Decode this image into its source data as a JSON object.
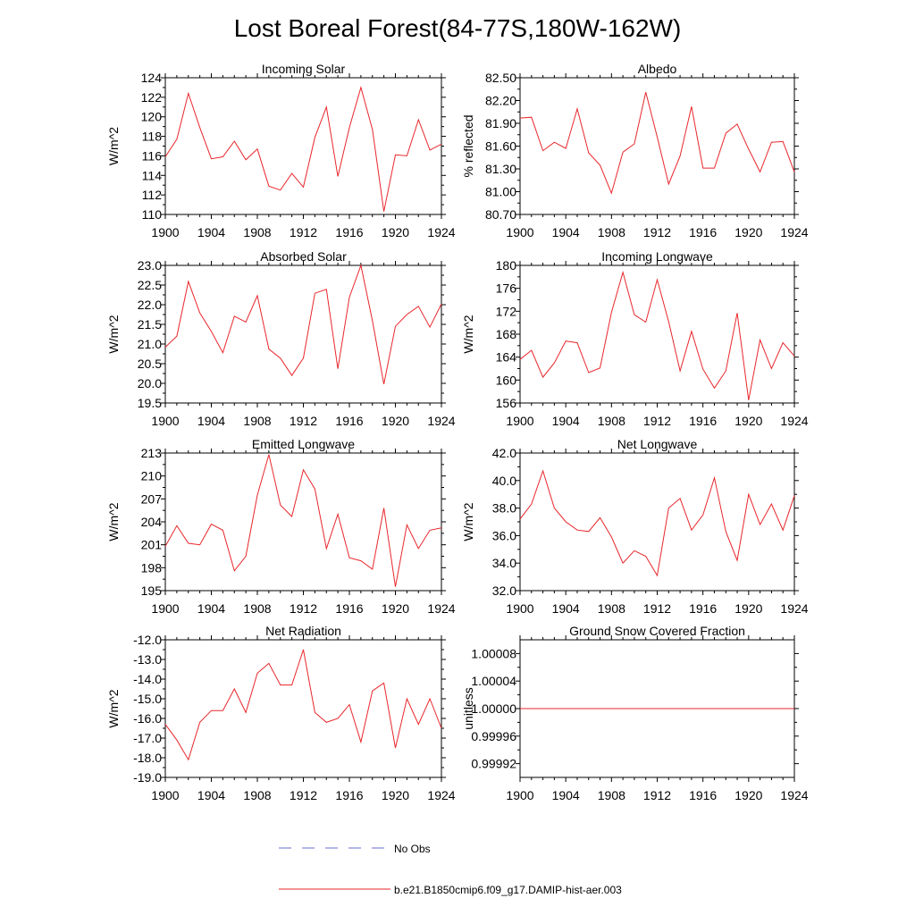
{
  "title": "Lost Boreal Forest(84-77S,180W-162W)",
  "legend": {
    "obs_label": "No Obs",
    "model_label": "b.e21.B1850cmip6.f09_g17.DAMIP-hist-aer.003",
    "obs_color": "#6b6bd6",
    "model_color": "#e8262b"
  },
  "chart_data": [
    {
      "type": "line",
      "title": "Incoming Solar",
      "ylabel": "W/m^2",
      "xlim": [
        1900,
        1924
      ],
      "ylim": [
        110,
        124
      ],
      "xticks": [
        1900,
        1904,
        1908,
        1912,
        1916,
        1920,
        1924
      ],
      "yticks": [
        110,
        112,
        114,
        116,
        118,
        120,
        122,
        124
      ],
      "ytick_labels": [
        "110",
        "112",
        "114",
        "116",
        "118",
        "120",
        "122",
        "124"
      ],
      "x": [
        1900,
        1901,
        1902,
        1903,
        1904,
        1905,
        1906,
        1907,
        1908,
        1909,
        1910,
        1911,
        1912,
        1913,
        1914,
        1915,
        1916,
        1917,
        1918,
        1919,
        1920,
        1921,
        1922,
        1923,
        1924
      ],
      "series": [
        {
          "values": [
            115.9,
            117.7,
            122.4,
            118.9,
            115.7,
            115.9,
            117.5,
            115.6,
            116.7,
            112.9,
            112.5,
            114.2,
            112.8,
            117.9,
            121.0,
            113.9,
            118.9,
            123.0,
            118.7,
            110.3,
            116.1,
            116.0,
            119.7,
            116.6,
            117.2
          ]
        }
      ]
    },
    {
      "type": "line",
      "title": "Albedo",
      "ylabel": "% reflected",
      "xlim": [
        1900,
        1924
      ],
      "ylim": [
        80.7,
        82.5
      ],
      "xticks": [
        1900,
        1904,
        1908,
        1912,
        1916,
        1920,
        1924
      ],
      "yticks": [
        80.7,
        81.0,
        81.3,
        81.6,
        81.9,
        82.2,
        82.5
      ],
      "ytick_labels": [
        "80.70",
        "81.00",
        "81.30",
        "81.60",
        "81.90",
        "82.20",
        "82.50"
      ],
      "x": [
        1900,
        1901,
        1902,
        1903,
        1904,
        1905,
        1906,
        1907,
        1908,
        1909,
        1910,
        1911,
        1912,
        1913,
        1914,
        1915,
        1916,
        1917,
        1918,
        1919,
        1920,
        1921,
        1922,
        1923,
        1924
      ],
      "series": [
        {
          "values": [
            81.97,
            81.98,
            81.54,
            81.65,
            81.57,
            82.09,
            81.51,
            81.35,
            80.98,
            81.52,
            81.63,
            82.31,
            81.72,
            81.1,
            81.47,
            82.12,
            81.31,
            81.31,
            81.77,
            81.89,
            81.56,
            81.26,
            81.65,
            81.66,
            81.26
          ]
        }
      ]
    },
    {
      "type": "line",
      "title": "Absorbed Solar",
      "ylabel": "W/m^2",
      "xlim": [
        1900,
        1924
      ],
      "ylim": [
        19.5,
        23.0
      ],
      "xticks": [
        1900,
        1904,
        1908,
        1912,
        1916,
        1920,
        1924
      ],
      "yticks": [
        19.5,
        20.0,
        20.5,
        21.0,
        21.5,
        22.0,
        22.5,
        23.0
      ],
      "ytick_labels": [
        "19.5",
        "20.0",
        "20.5",
        "21.0",
        "21.5",
        "22.0",
        "22.5",
        "23.0"
      ],
      "x": [
        1900,
        1901,
        1902,
        1903,
        1904,
        1905,
        1906,
        1907,
        1908,
        1909,
        1910,
        1911,
        1912,
        1913,
        1914,
        1915,
        1916,
        1917,
        1918,
        1919,
        1920,
        1921,
        1922,
        1923,
        1924
      ],
      "series": [
        {
          "values": [
            20.92,
            21.2,
            22.59,
            21.79,
            21.32,
            20.78,
            21.71,
            21.56,
            22.23,
            20.87,
            20.64,
            20.2,
            20.64,
            22.29,
            22.39,
            20.37,
            22.19,
            23.0,
            21.59,
            19.98,
            21.45,
            21.75,
            21.96,
            21.43,
            22.02
          ]
        }
      ]
    },
    {
      "type": "line",
      "title": "Incoming Longwave",
      "ylabel": "W/m^2",
      "xlim": [
        1900,
        1924
      ],
      "ylim": [
        156,
        180
      ],
      "xticks": [
        1900,
        1904,
        1908,
        1912,
        1916,
        1920,
        1924
      ],
      "yticks": [
        156,
        160,
        164,
        168,
        172,
        176,
        180
      ],
      "ytick_labels": [
        "156",
        "160",
        "164",
        "168",
        "172",
        "176",
        "180"
      ],
      "x": [
        1900,
        1901,
        1902,
        1903,
        1904,
        1905,
        1906,
        1907,
        1908,
        1909,
        1910,
        1911,
        1912,
        1913,
        1914,
        1915,
        1916,
        1917,
        1918,
        1919,
        1920,
        1921,
        1922,
        1923,
        1924
      ],
      "series": [
        {
          "values": [
            163.6,
            165.2,
            160.5,
            163.0,
            166.8,
            166.5,
            161.3,
            162.1,
            171.8,
            178.8,
            171.4,
            170.1,
            177.5,
            170.2,
            161.6,
            168.5,
            161.9,
            158.6,
            161.6,
            171.7,
            156.5,
            167.0,
            162.0,
            166.5,
            164.2
          ]
        }
      ]
    },
    {
      "type": "line",
      "title": "Emitted Longwave",
      "ylabel": "W/m^2",
      "xlim": [
        1900,
        1924
      ],
      "ylim": [
        195,
        213
      ],
      "xticks": [
        1900,
        1904,
        1908,
        1912,
        1916,
        1920,
        1924
      ],
      "yticks": [
        195,
        198,
        201,
        204,
        207,
        210,
        213
      ],
      "ytick_labels": [
        "195",
        "198",
        "201",
        "204",
        "207",
        "210",
        "213"
      ],
      "x": [
        1900,
        1901,
        1902,
        1903,
        1904,
        1905,
        1906,
        1907,
        1908,
        1909,
        1910,
        1911,
        1912,
        1913,
        1914,
        1915,
        1916,
        1917,
        1918,
        1919,
        1920,
        1921,
        1922,
        1923,
        1924
      ],
      "series": [
        {
          "values": [
            200.8,
            203.5,
            201.2,
            201.0,
            203.7,
            202.9,
            197.6,
            199.5,
            207.5,
            212.8,
            206.2,
            204.7,
            210.8,
            208.3,
            200.5,
            205.0,
            199.3,
            198.9,
            197.8,
            205.8,
            195.5,
            203.6,
            200.5,
            202.9,
            203.2
          ]
        }
      ]
    },
    {
      "type": "line",
      "title": "Net Longwave",
      "ylabel": "W/m^2",
      "xlim": [
        1900,
        1924
      ],
      "ylim": [
        32,
        42
      ],
      "xticks": [
        1900,
        1904,
        1908,
        1912,
        1916,
        1920,
        1924
      ],
      "yticks": [
        32,
        34,
        36,
        38,
        40,
        42
      ],
      "ytick_labels": [
        "32.0",
        "34.0",
        "36.0",
        "38.0",
        "40.0",
        "42.0"
      ],
      "x": [
        1900,
        1901,
        1902,
        1903,
        1904,
        1905,
        1906,
        1907,
        1908,
        1909,
        1910,
        1911,
        1912,
        1913,
        1914,
        1915,
        1916,
        1917,
        1918,
        1919,
        1920,
        1921,
        1922,
        1923,
        1924
      ],
      "series": [
        {
          "values": [
            37.2,
            38.3,
            40.7,
            38.0,
            37.0,
            36.4,
            36.3,
            37.3,
            35.9,
            34.0,
            34.9,
            34.5,
            33.1,
            38.0,
            38.7,
            36.4,
            37.5,
            40.2,
            36.3,
            34.2,
            39.0,
            36.8,
            38.3,
            36.4,
            38.9
          ]
        }
      ]
    },
    {
      "type": "line",
      "title": "Net Radiation",
      "ylabel": "W/m^2",
      "xlim": [
        1900,
        1924
      ],
      "ylim": [
        -19,
        -12
      ],
      "xticks": [
        1900,
        1904,
        1908,
        1912,
        1916,
        1920,
        1924
      ],
      "yticks": [
        -19,
        -18,
        -17,
        -16,
        -15,
        -14,
        -13,
        -12
      ],
      "ytick_labels": [
        "-19.0",
        "-18.0",
        "-17.0",
        "-16.0",
        "-15.0",
        "-14.0",
        "-13.0",
        "-12.0"
      ],
      "x": [
        1900,
        1901,
        1902,
        1903,
        1904,
        1905,
        1906,
        1907,
        1908,
        1909,
        1910,
        1911,
        1912,
        1913,
        1914,
        1915,
        1916,
        1917,
        1918,
        1919,
        1920,
        1921,
        1922,
        1923,
        1924
      ],
      "series": [
        {
          "values": [
            -16.3,
            -17.1,
            -18.1,
            -16.2,
            -15.6,
            -15.6,
            -14.5,
            -15.7,
            -13.7,
            -13.2,
            -14.3,
            -14.3,
            -12.5,
            -15.7,
            -16.2,
            -16.0,
            -15.3,
            -17.2,
            -14.6,
            -14.2,
            -17.5,
            -15.0,
            -16.3,
            -15.0,
            -16.5
          ]
        }
      ]
    },
    {
      "type": "line",
      "title": "Ground Snow Covered Fraction",
      "ylabel": "unitless",
      "xlim": [
        1900,
        1924
      ],
      "ylim": [
        0.9999,
        1.0001
      ],
      "xticks": [
        1900,
        1904,
        1908,
        1912,
        1916,
        1920,
        1924
      ],
      "yticks": [
        0.99992,
        0.99996,
        1.0,
        1.00004,
        1.00008
      ],
      "ytick_labels": [
        "0.99992",
        "0.99996",
        "1.00000",
        "1.00004",
        "1.00008"
      ],
      "x": [
        1900,
        1924
      ],
      "series": [
        {
          "values": [
            1.0,
            1.0
          ]
        }
      ]
    }
  ]
}
